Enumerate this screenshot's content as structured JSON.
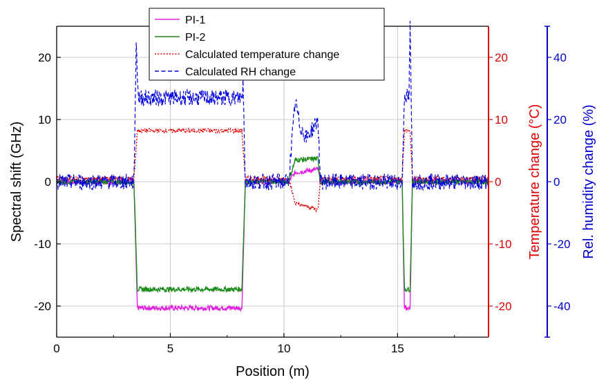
{
  "chart_data": {
    "type": "line",
    "xlabel": "Position (m)",
    "xlim": [
      0,
      19
    ],
    "x_ticks": [
      "0",
      "5",
      "10",
      "15"
    ],
    "grid": true,
    "legend_position": "top-center",
    "axes": {
      "left": {
        "label": "Spectral shift (GHz)",
        "ylim": [
          -25,
          25
        ],
        "ticks": [
          "20",
          "10",
          "0",
          "-10",
          "-20"
        ],
        "color": "#000000"
      },
      "right1": {
        "label": "Temperature change (°C)",
        "ylim": [
          -25,
          25
        ],
        "ticks": [
          "20",
          "10",
          "0",
          "-10",
          "-20"
        ],
        "color": "#e00000"
      },
      "right2": {
        "label": "Rel. humidity change (%)",
        "ylim": [
          -50,
          50
        ],
        "ticks": [
          "40",
          "20",
          "0",
          "-20",
          "-40"
        ],
        "color": "#0000cc"
      }
    },
    "series": [
      {
        "name": "PI-1",
        "axis": "left",
        "color": "#e020e0",
        "dash": "solid",
        "points": [
          [
            0,
            0
          ],
          [
            3.4,
            0
          ],
          [
            3.55,
            -20.3
          ],
          [
            8.15,
            -20.3
          ],
          [
            8.3,
            0
          ],
          [
            10.2,
            0
          ],
          [
            10.5,
            1.5
          ],
          [
            11.5,
            2.0
          ],
          [
            11.6,
            0
          ],
          [
            15.2,
            0
          ],
          [
            15.3,
            -20.3
          ],
          [
            15.55,
            -20.3
          ],
          [
            15.65,
            0
          ],
          [
            19,
            0
          ]
        ]
      },
      {
        "name": "PI-2",
        "axis": "left",
        "color": "#1a8a1a",
        "dash": "solid",
        "points": [
          [
            0,
            0
          ],
          [
            3.4,
            0
          ],
          [
            3.55,
            -17.3
          ],
          [
            8.15,
            -17.3
          ],
          [
            8.3,
            0
          ],
          [
            10.2,
            0
          ],
          [
            10.5,
            3.5
          ],
          [
            11.5,
            3.7
          ],
          [
            11.6,
            0
          ],
          [
            15.2,
            0
          ],
          [
            15.3,
            -17.3
          ],
          [
            15.55,
            -17.3
          ],
          [
            15.65,
            0
          ],
          [
            19,
            0
          ]
        ]
      },
      {
        "name": "Calculated temperature change",
        "axis": "right1",
        "color": "#e00000",
        "dash": "dotted",
        "points": [
          [
            0,
            0.5
          ],
          [
            3.4,
            0.5
          ],
          [
            3.55,
            8.2
          ],
          [
            8.15,
            8.2
          ],
          [
            8.3,
            0.5
          ],
          [
            10.2,
            0.5
          ],
          [
            10.5,
            -3.5
          ],
          [
            11.5,
            -4.5
          ],
          [
            11.6,
            0.5
          ],
          [
            15.2,
            0.5
          ],
          [
            15.3,
            8.2
          ],
          [
            15.55,
            8.2
          ],
          [
            15.65,
            0.5
          ],
          [
            19,
            0.5
          ]
        ]
      },
      {
        "name": "Calculated RH change",
        "axis": "right2",
        "color": "#0000dd",
        "dash": "dashed",
        "points": [
          [
            0,
            0
          ],
          [
            3.4,
            0
          ],
          [
            3.5,
            44
          ],
          [
            3.6,
            27
          ],
          [
            8.15,
            27
          ],
          [
            8.2,
            32
          ],
          [
            8.3,
            0
          ],
          [
            10.2,
            0
          ],
          [
            10.5,
            26
          ],
          [
            10.7,
            18
          ],
          [
            11.0,
            14
          ],
          [
            11.5,
            20
          ],
          [
            11.6,
            0
          ],
          [
            15.2,
            0
          ],
          [
            15.3,
            28
          ],
          [
            15.5,
            27
          ],
          [
            15.55,
            50
          ],
          [
            15.65,
            0
          ],
          [
            19,
            0
          ]
        ]
      }
    ]
  }
}
